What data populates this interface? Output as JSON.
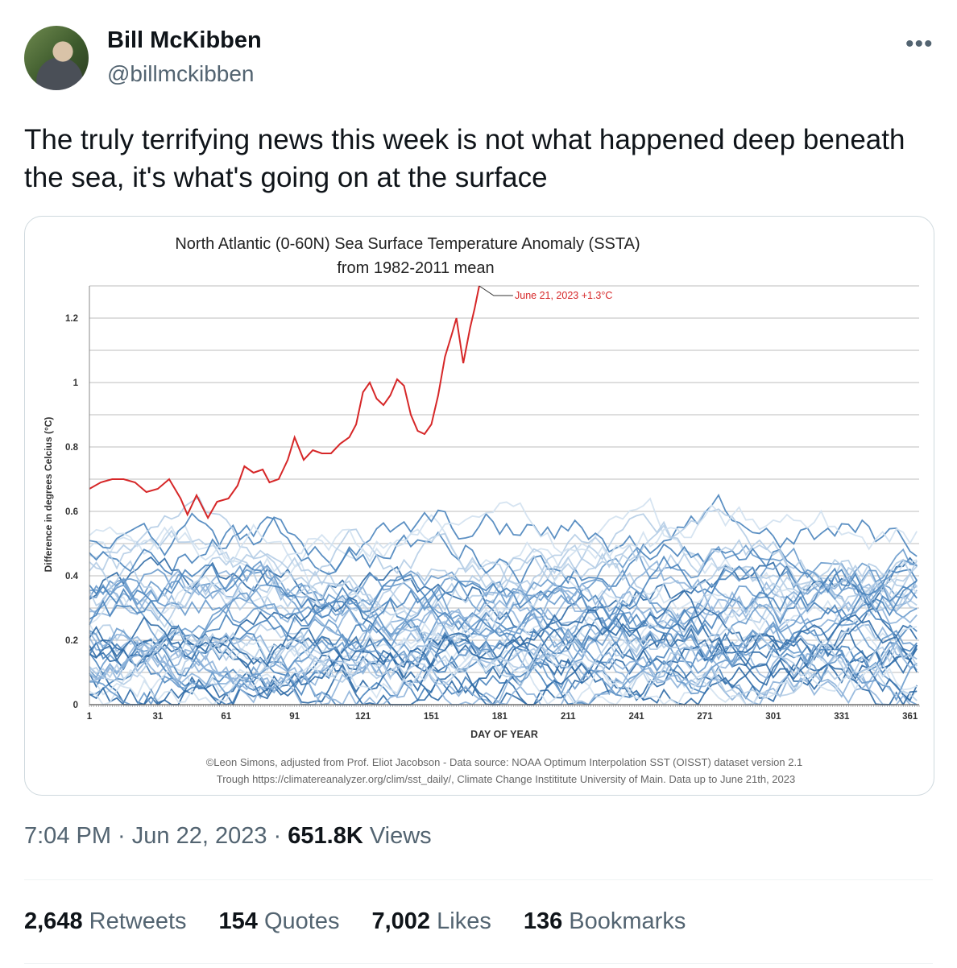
{
  "author": {
    "name": "Bill McKibben",
    "handle": "@billmckibben"
  },
  "more_icon": "more-horizontal-icon",
  "tweet_text": "The truly terrifying news this week is not what happened deep beneath the sea, it's what's going on at the surface",
  "chart_data": {
    "type": "line",
    "title": "North Atlantic (0-60N) Sea Surface Temperature Anomaly (SSTA)",
    "subtitle": "from 1982-2011 mean",
    "xlabel": "DAY OF YEAR",
    "ylabel": "Difference in degrees Celcius (°C)",
    "xlim": [
      1,
      365
    ],
    "ylim": [
      0,
      1.3
    ],
    "x_ticks": [
      "1",
      "31",
      "61",
      "91",
      "121",
      "151",
      "181",
      "211",
      "241",
      "271",
      "301",
      "331",
      "361"
    ],
    "y_ticks": [
      "0",
      "0.2",
      "0.4",
      "0.6",
      "0.8",
      "1",
      "1.2"
    ],
    "grid": true,
    "annotation": "June 21, 2023 +1.3°C",
    "credit_line_1": "©Leon Simons, adjusted from Prof. Eliot Jacobson - Data source: NOAA Optimum Interpolation SST (OISST) dataset version 2.1",
    "credit_line_2": "Trough https://climatereanalyzer.org/clim/sst_daily/, Climate Change Instititute University of Main. Data up to June 21th, 2023",
    "highlight_color": "#d62728",
    "series": [
      {
        "color": "#d62728",
        "points": [
          [
            1,
            0.67
          ],
          [
            6,
            0.69
          ],
          [
            11,
            0.7
          ],
          [
            16,
            0.7
          ],
          [
            21,
            0.69
          ],
          [
            26,
            0.66
          ],
          [
            31,
            0.67
          ],
          [
            36,
            0.7
          ],
          [
            41,
            0.64
          ],
          [
            44,
            0.59
          ],
          [
            48,
            0.65
          ],
          [
            53,
            0.58
          ],
          [
            57,
            0.63
          ],
          [
            62,
            0.64
          ],
          [
            66,
            0.68
          ],
          [
            69,
            0.74
          ],
          [
            73,
            0.72
          ],
          [
            77,
            0.73
          ],
          [
            80,
            0.69
          ],
          [
            84,
            0.7
          ],
          [
            88,
            0.76
          ],
          [
            91,
            0.83
          ],
          [
            95,
            0.76
          ],
          [
            99,
            0.79
          ],
          [
            103,
            0.78
          ],
          [
            107,
            0.78
          ],
          [
            111,
            0.81
          ],
          [
            115,
            0.83
          ],
          [
            118,
            0.87
          ],
          [
            121,
            0.97
          ],
          [
            124,
            1.0
          ],
          [
            127,
            0.95
          ],
          [
            130,
            0.93
          ],
          [
            133,
            0.96
          ],
          [
            136,
            1.01
          ],
          [
            139,
            0.99
          ],
          [
            142,
            0.9
          ],
          [
            145,
            0.85
          ],
          [
            148,
            0.84
          ],
          [
            151,
            0.87
          ],
          [
            154,
            0.96
          ],
          [
            157,
            1.08
          ],
          [
            160,
            1.15
          ],
          [
            162,
            1.2
          ],
          [
            165,
            1.06
          ],
          [
            168,
            1.17
          ],
          [
            170,
            1.23
          ],
          [
            172,
            1.3
          ]
        ]
      }
    ],
    "background_series_count": 41,
    "background_colors": [
      "#2f6aa6",
      "#4a84bd",
      "#6a9bcc",
      "#8fb4da",
      "#b5cde6",
      "#d2e1f0"
    ]
  },
  "timestamp": "7:04 PM · Jun 22, 2023 · ",
  "views_count": "651.8K",
  "views_label": " Views",
  "stats": {
    "retweets_count": "2,648",
    "retweets_label": " Retweets",
    "quotes_count": "154",
    "quotes_label": " Quotes",
    "likes_count": "7,002",
    "likes_label": " Likes",
    "bookmarks_count": "136",
    "bookmarks_label": " Bookmarks"
  }
}
